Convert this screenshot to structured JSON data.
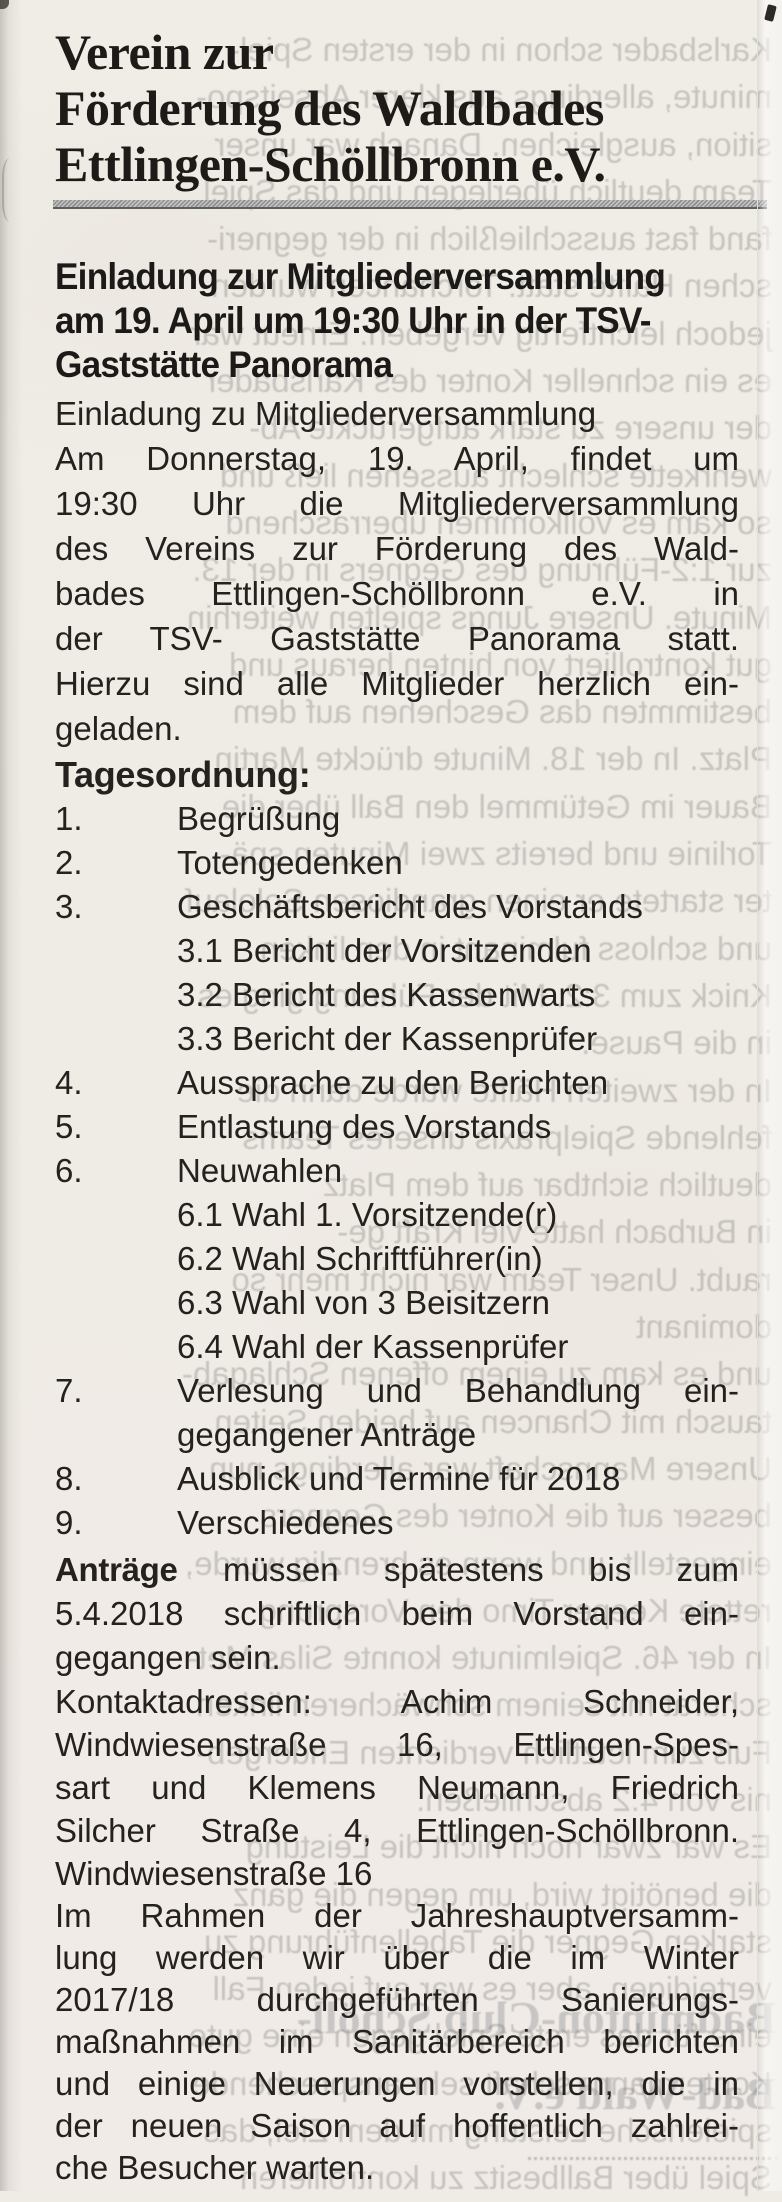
{
  "palette": {
    "paper": "#efece6",
    "ink": "#24211e",
    "rule_gray": "#8f8f8f"
  },
  "masthead": {
    "lines": [
      {
        "t": "Verein zur"
      },
      {
        "t": "Förderung des Waldbades"
      },
      {
        "t": "Ettlingen-Schöllbronn e.V."
      }
    ]
  },
  "invitation": {
    "heading_lines": [
      {
        "t": "Einladung zur Mitgliederversammlung"
      },
      {
        "t": "am 19. April um 19:30 Uhr in der TSV-"
      },
      {
        "t": "Gaststätte Panorama"
      }
    ],
    "intro_lines": [
      {
        "t": "Einladung zu Mitgliederversammlung"
      },
      {
        "t": "Am Donnerstag, 19. April, findet um",
        "j": true
      },
      {
        "t": "19:30 Uhr die Mitgliederversammlung",
        "j": true
      },
      {
        "t": "des Vereins zur Förderung des Wald-",
        "j": true
      },
      {
        "t": "bades Ettlingen-Schöllbronn e.V. in",
        "j": true
      },
      {
        "t": "der TSV- Gaststätte Panorama statt.",
        "j": true
      },
      {
        "t": "Hierzu sind alle Mitglieder herzlich ein-",
        "j": true
      },
      {
        "t": "geladen."
      }
    ]
  },
  "agenda": {
    "heading": "Tagesordnung:",
    "rows": [
      {
        "num": "1.",
        "t": "Begrüßung"
      },
      {
        "num": "2.",
        "t": "Totengedenken"
      },
      {
        "num": "3.",
        "t": "Geschäftsbericht des Vorstands"
      },
      {
        "num": "",
        "t": "3.1 Bericht der Vorsitzenden"
      },
      {
        "num": "",
        "t": "3.2 Bericht des Kassenwarts"
      },
      {
        "num": "",
        "t": "3.3 Bericht der Kassenprüfer"
      },
      {
        "num": "4.",
        "t": "Aussprache zu den Berichten"
      },
      {
        "num": "5.",
        "t": "Entlastung des Vorstands"
      },
      {
        "num": "6.",
        "t": "Neuwahlen"
      },
      {
        "num": "",
        "t": "6.1 Wahl 1. Vorsitzende(r)"
      },
      {
        "num": "",
        "t": "6.2 Wahl Schriftführer(in)"
      },
      {
        "num": "",
        "t": "6.3 Wahl von 3 Beisitzern"
      },
      {
        "num": "",
        "t": "6.4 Wahl der Kassenprüfer"
      },
      {
        "num": "7.",
        "t": "Verlesung und Behandlung ein-",
        "j": true
      },
      {
        "num": "",
        "t": "gegangener Anträge"
      },
      {
        "num": "8.",
        "t": "Ausblick und Termine für 2018"
      },
      {
        "num": "9.",
        "t": "Verschiedenes"
      }
    ]
  },
  "deadline": {
    "bold_lead": "Anträge",
    "first_rest": "müssen spätestens bis zum",
    "rest_lines": [
      {
        "t": "5.4.2018 schriftlich beim Vorstand ein-",
        "j": true
      },
      {
        "t": "gegangen sein."
      }
    ]
  },
  "contacts": {
    "lines": [
      {
        "t": "Kontaktadressen: Achim Schneider,",
        "j": true
      },
      {
        "t": "Windwiesenstraße 16, Ettlingen-Spes-",
        "j": true
      },
      {
        "t": "sart und Klemens Neumann, Friedrich",
        "j": true
      },
      {
        "t": "Silcher Straße 4, Ettlingen-Schöllbronn.",
        "j": true
      },
      {
        "t": "Windwiesenstraße 16"
      }
    ]
  },
  "closing": {
    "lines": [
      {
        "t": "Im Rahmen der Jahreshauptversamm-",
        "j": true
      },
      {
        "t": "lung werden wir über die im Winter",
        "j": true
      },
      {
        "t": "2017/18 durchgeführten Sanierungs-",
        "j": true
      },
      {
        "t": "maßnahmen im Sanitärbereich berichten",
        "j": true
      },
      {
        "t": "und einige Neuerungen vorstellen, die in",
        "j": true
      },
      {
        "t": "der neuen Saison auf hoffentlich zahlrei-",
        "j": true
      },
      {
        "t": "che Besucher warten."
      }
    ]
  },
  "bleedthrough": {
    "lines": [
      "Karlsbader schon in der ersten Spiel-",
      "minute, allerdings aus klarer Abseitspo-",
      "sition, ausgleichen. Danach war unser",
      "Team deutlich überlegen und das Spiel",
      "fand fast ausschließlich in der gegneri-",
      "schen Hälfte statt. Torchancen wurden",
      "jedoch leichtfertig vergeben. Erneut war",
      "es ein schneller Konter des Karlsbader",
      "der unsere zu stark aufgerückte Ab-",
      "wehrkette schlecht aussehen ließ und",
      "so kam es vollkommen überraschend",
      "zur 1:2-Führung des Gegners in der 13.",
      "Minute. Unsere Jungs spielten weiterhin",
      "gut kontrolliert von hinten heraus und",
      "bestimmten das Geschehen auf dem",
      "Platz. In der 18. Minute drückte Martin",
      "Bauer im Getümmel den Ball über die",
      "Torlinie und bereits zwei Minuten spä-",
      "ter startete er einen grandiosen Sololauf",
      "und schloss fulminant in den linken",
      "Knick zum 3:2. Mit der Führung ging es",
      "in die Pause.",
      "In der zweiten Hälfte wurde dann die",
      "fehlende Spielpraxis unseres Teams",
      "deutlich sichtbar auf dem Platz",
      "in Burbach hatte viel Kraft ge-",
      "raubt. Unser Team war nicht mehr so",
      "dominant",
      "und es kam zu einem offenen Schlagab-",
      "tausch mit Chancen auf beiden Seiten.",
      "Unsere Mannschaft war allerdings nun",
      "besser auf die Konter des Gegners",
      "eingestellt, und wenn es brenzlig wurde,",
      "rettete Keeper Timo den Vorsprung",
      "In der 46. Spielminute konnte Silas Met-",
      "schurat mit seinem schwächeren linken",
      "Fuß zum letztlich verdienten Endergeb-",
      "nis von 4:2 abschließen.",
      "Es war zwar noch nicht die Leistung",
      "die benötigt wird, um gegen die ganz",
      "starken Gegner die Tabellenführung zu",
      "verteidigen, aber es war auf jeden Fall",
      "eine für das erste Spiel gegen eine gute",
      "Kontermann- schaft sehr ansprechende",
      "spielerische Leistung mit dem Ziel, das",
      "Spiel über Ballbesitz zu kontrollieren"
    ],
    "bold_lines": [
      "Badminton-Club Schöll-",
      "Bad-Wald e.V."
    ]
  }
}
